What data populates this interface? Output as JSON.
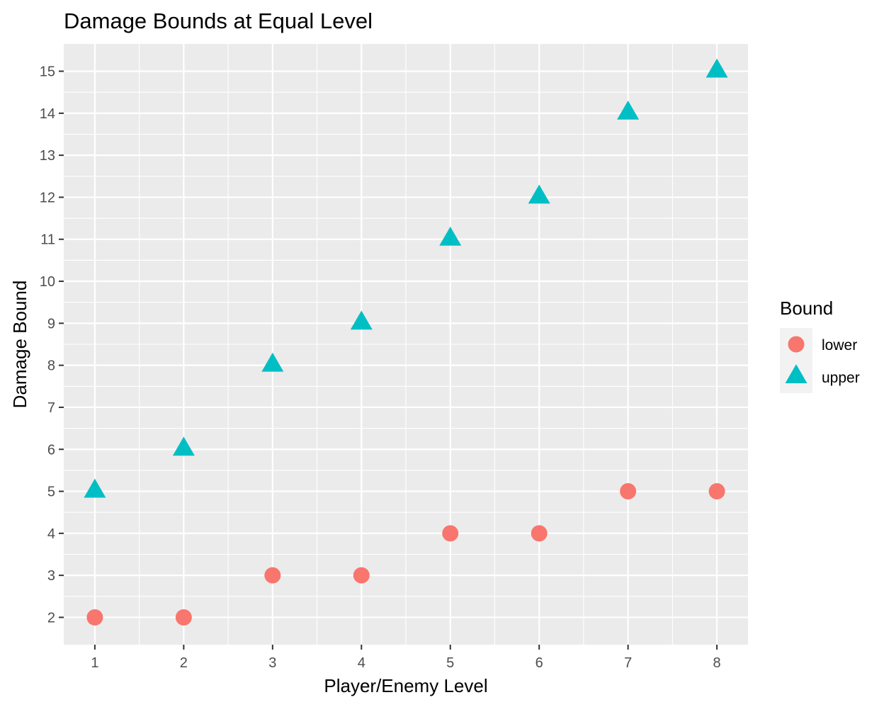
{
  "chart_data": {
    "type": "scatter",
    "title": "Damage Bounds at Equal Level",
    "xlabel": "Player/Enemy Level",
    "ylabel": "Damage Bound",
    "xlim": [
      0.65,
      8.35
    ],
    "ylim": [
      1.35,
      15.65
    ],
    "x_ticks": [
      1,
      2,
      3,
      4,
      5,
      6,
      7,
      8
    ],
    "y_ticks": [
      2,
      3,
      4,
      5,
      6,
      7,
      8,
      9,
      10,
      11,
      12,
      13,
      14,
      15
    ],
    "grid": true,
    "background": "#ebebeb",
    "legend": {
      "title": "Bound",
      "position": "right"
    },
    "series": [
      {
        "name": "lower",
        "shape": "circle",
        "color": "#f8766d",
        "x": [
          1,
          2,
          3,
          4,
          5,
          6,
          7,
          8
        ],
        "y": [
          2,
          2,
          3,
          3,
          4,
          4,
          5,
          5
        ]
      },
      {
        "name": "upper",
        "shape": "triangle",
        "color": "#00bfc4",
        "x": [
          1,
          2,
          3,
          4,
          5,
          6,
          7,
          8
        ],
        "y": [
          5,
          6,
          8,
          9,
          11,
          12,
          14,
          15
        ]
      }
    ]
  }
}
